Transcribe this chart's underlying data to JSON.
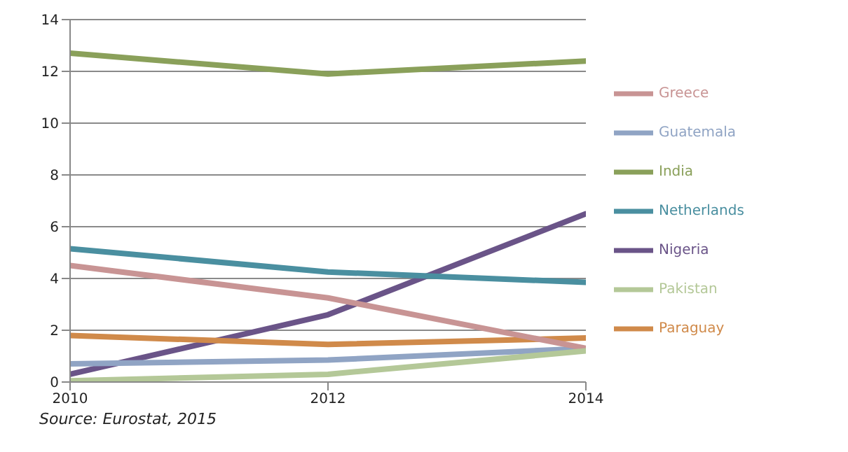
{
  "chart_data": {
    "type": "line",
    "x": [
      2010,
      2012,
      2014
    ],
    "xlim": [
      2010,
      2014
    ],
    "xticks": [
      2010,
      2012,
      2014
    ],
    "ylim": [
      0,
      14
    ],
    "yticks": [
      0,
      2,
      4,
      6,
      8,
      10,
      12,
      14
    ],
    "grid": "y",
    "legend": "right",
    "marker": "none",
    "line_style": "solid",
    "annotations": [
      "Source: Eurostat, 2015"
    ],
    "series": [
      {
        "name": "India",
        "color": "#8aa05a",
        "values": [
          12.7,
          11.9,
          12.4
        ]
      },
      {
        "name": "Nigeria",
        "color": "#6a5488",
        "values": [
          0.3,
          2.6,
          6.5
        ]
      },
      {
        "name": "Netherlands",
        "color": "#4a8fa0",
        "values": [
          5.15,
          4.25,
          3.85
        ]
      },
      {
        "name": "Paraguay",
        "color": "#d08a4a",
        "values": [
          1.8,
          1.45,
          1.7
        ]
      },
      {
        "name": "Guatemala",
        "color": "#90a4c4",
        "values": [
          0.7,
          0.85,
          1.3
        ]
      },
      {
        "name": "Greece",
        "color": "#c89494",
        "values": [
          4.5,
          3.25,
          1.3
        ]
      },
      {
        "name": "Pakistan",
        "color": "#b4c898",
        "values": [
          0.05,
          0.3,
          1.2
        ]
      }
    ]
  }
}
